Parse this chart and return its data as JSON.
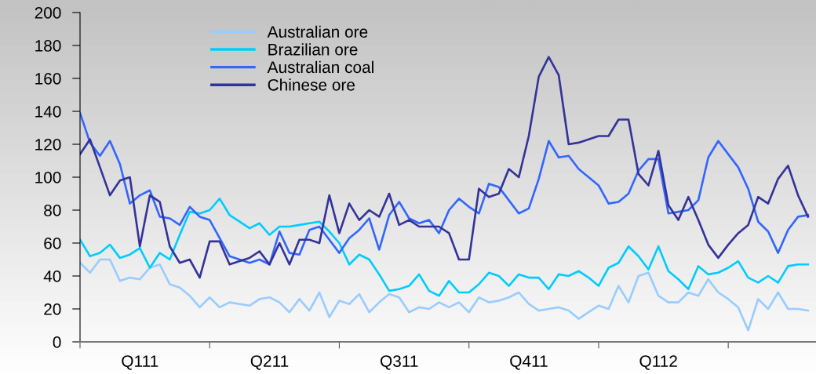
{
  "chart_data": {
    "type": "line",
    "categories": [
      null,
      null,
      null,
      null,
      null,
      null,
      "Q111",
      null,
      null,
      null,
      null,
      null,
      null,
      null,
      null,
      null,
      null,
      null,
      null,
      "Q211",
      null,
      null,
      null,
      null,
      null,
      null,
      null,
      null,
      null,
      null,
      null,
      null,
      "Q311",
      null,
      null,
      null,
      null,
      null,
      null,
      null,
      null,
      null,
      null,
      null,
      null,
      "Q411",
      null,
      null,
      null,
      null,
      null,
      null,
      null,
      null,
      null,
      null,
      null,
      null,
      "Q112",
      null,
      null,
      null,
      null,
      null,
      null,
      null,
      null,
      null,
      null,
      null,
      null,
      null,
      null,
      null
    ],
    "ylim": [
      0,
      200
    ],
    "yticks": [
      0,
      20,
      40,
      60,
      80,
      100,
      120,
      140,
      160,
      180,
      200
    ],
    "grid": false,
    "legend": "top left",
    "marker": "none",
    "line_style": "solid",
    "series": [
      {
        "name": "Australian ore",
        "color": "#99ccff",
        "values": [
          48,
          42,
          50,
          50,
          37,
          39,
          38,
          45,
          47,
          35,
          33,
          28,
          21,
          27,
          21,
          24,
          23,
          22,
          26,
          27,
          24,
          18,
          26,
          19,
          30,
          15,
          25,
          23,
          29,
          18,
          24,
          29,
          27,
          18,
          21,
          20,
          24,
          21,
          24,
          18,
          27,
          24,
          25,
          27,
          30,
          23,
          19,
          20,
          21,
          19,
          14,
          18,
          22,
          20,
          34,
          24,
          40,
          42,
          28,
          24,
          24,
          30,
          28,
          38,
          30,
          26,
          21,
          7,
          26,
          20,
          30,
          20,
          20,
          19
        ]
      },
      {
        "name": "Brazilian ore",
        "color": "#00ccff",
        "values": [
          62,
          52,
          54,
          59,
          51,
          53,
          57,
          45,
          54,
          50,
          65,
          79,
          78,
          80,
          87,
          77,
          73,
          69,
          72,
          65,
          70,
          70,
          71,
          72,
          73,
          67,
          60,
          47,
          53,
          50,
          41,
          31,
          32,
          34,
          41,
          31,
          28,
          37,
          30,
          30,
          35,
          42,
          40,
          34,
          41,
          39,
          39,
          32,
          41,
          40,
          43,
          39,
          34,
          45,
          48,
          58,
          52,
          44,
          58,
          43,
          38,
          32,
          46,
          41,
          42,
          45,
          49,
          39,
          36,
          40,
          36,
          46,
          47,
          47
        ]
      },
      {
        "name": "Australian coal",
        "color": "#3366ff",
        "values": [
          139,
          121,
          113,
          122,
          108,
          84,
          89,
          92,
          76,
          75,
          71,
          82,
          76,
          74,
          63,
          52,
          50,
          48,
          50,
          47,
          67,
          54,
          53,
          68,
          70,
          62,
          54,
          63,
          68,
          75,
          56,
          77,
          85,
          75,
          72,
          74,
          66,
          80,
          87,
          82,
          78,
          96,
          94,
          86,
          78,
          81,
          99,
          122,
          112,
          113,
          105,
          100,
          95,
          84,
          85,
          90,
          104,
          111,
          111,
          78,
          79,
          80,
          86,
          112,
          122,
          114,
          106,
          93,
          73,
          67,
          54,
          68,
          76,
          77
        ]
      },
      {
        "name": "Chinese ore",
        "color": "#333399",
        "values": [
          114,
          123,
          106,
          89,
          98,
          100,
          58,
          89,
          85,
          58,
          48,
          50,
          39,
          61,
          61,
          47,
          49,
          51,
          55,
          47,
          60,
          47,
          62,
          62,
          60,
          89,
          66,
          84,
          74,
          80,
          76,
          90,
          71,
          74,
          70,
          70,
          70,
          66,
          50,
          50,
          93,
          88,
          90,
          105,
          100,
          125,
          161,
          173,
          162,
          120,
          121,
          123,
          125,
          125,
          135,
          135,
          102,
          95,
          116,
          83,
          74,
          88,
          74,
          59,
          51,
          59,
          66,
          71,
          88,
          84,
          99,
          107,
          89,
          76
        ]
      }
    ]
  }
}
